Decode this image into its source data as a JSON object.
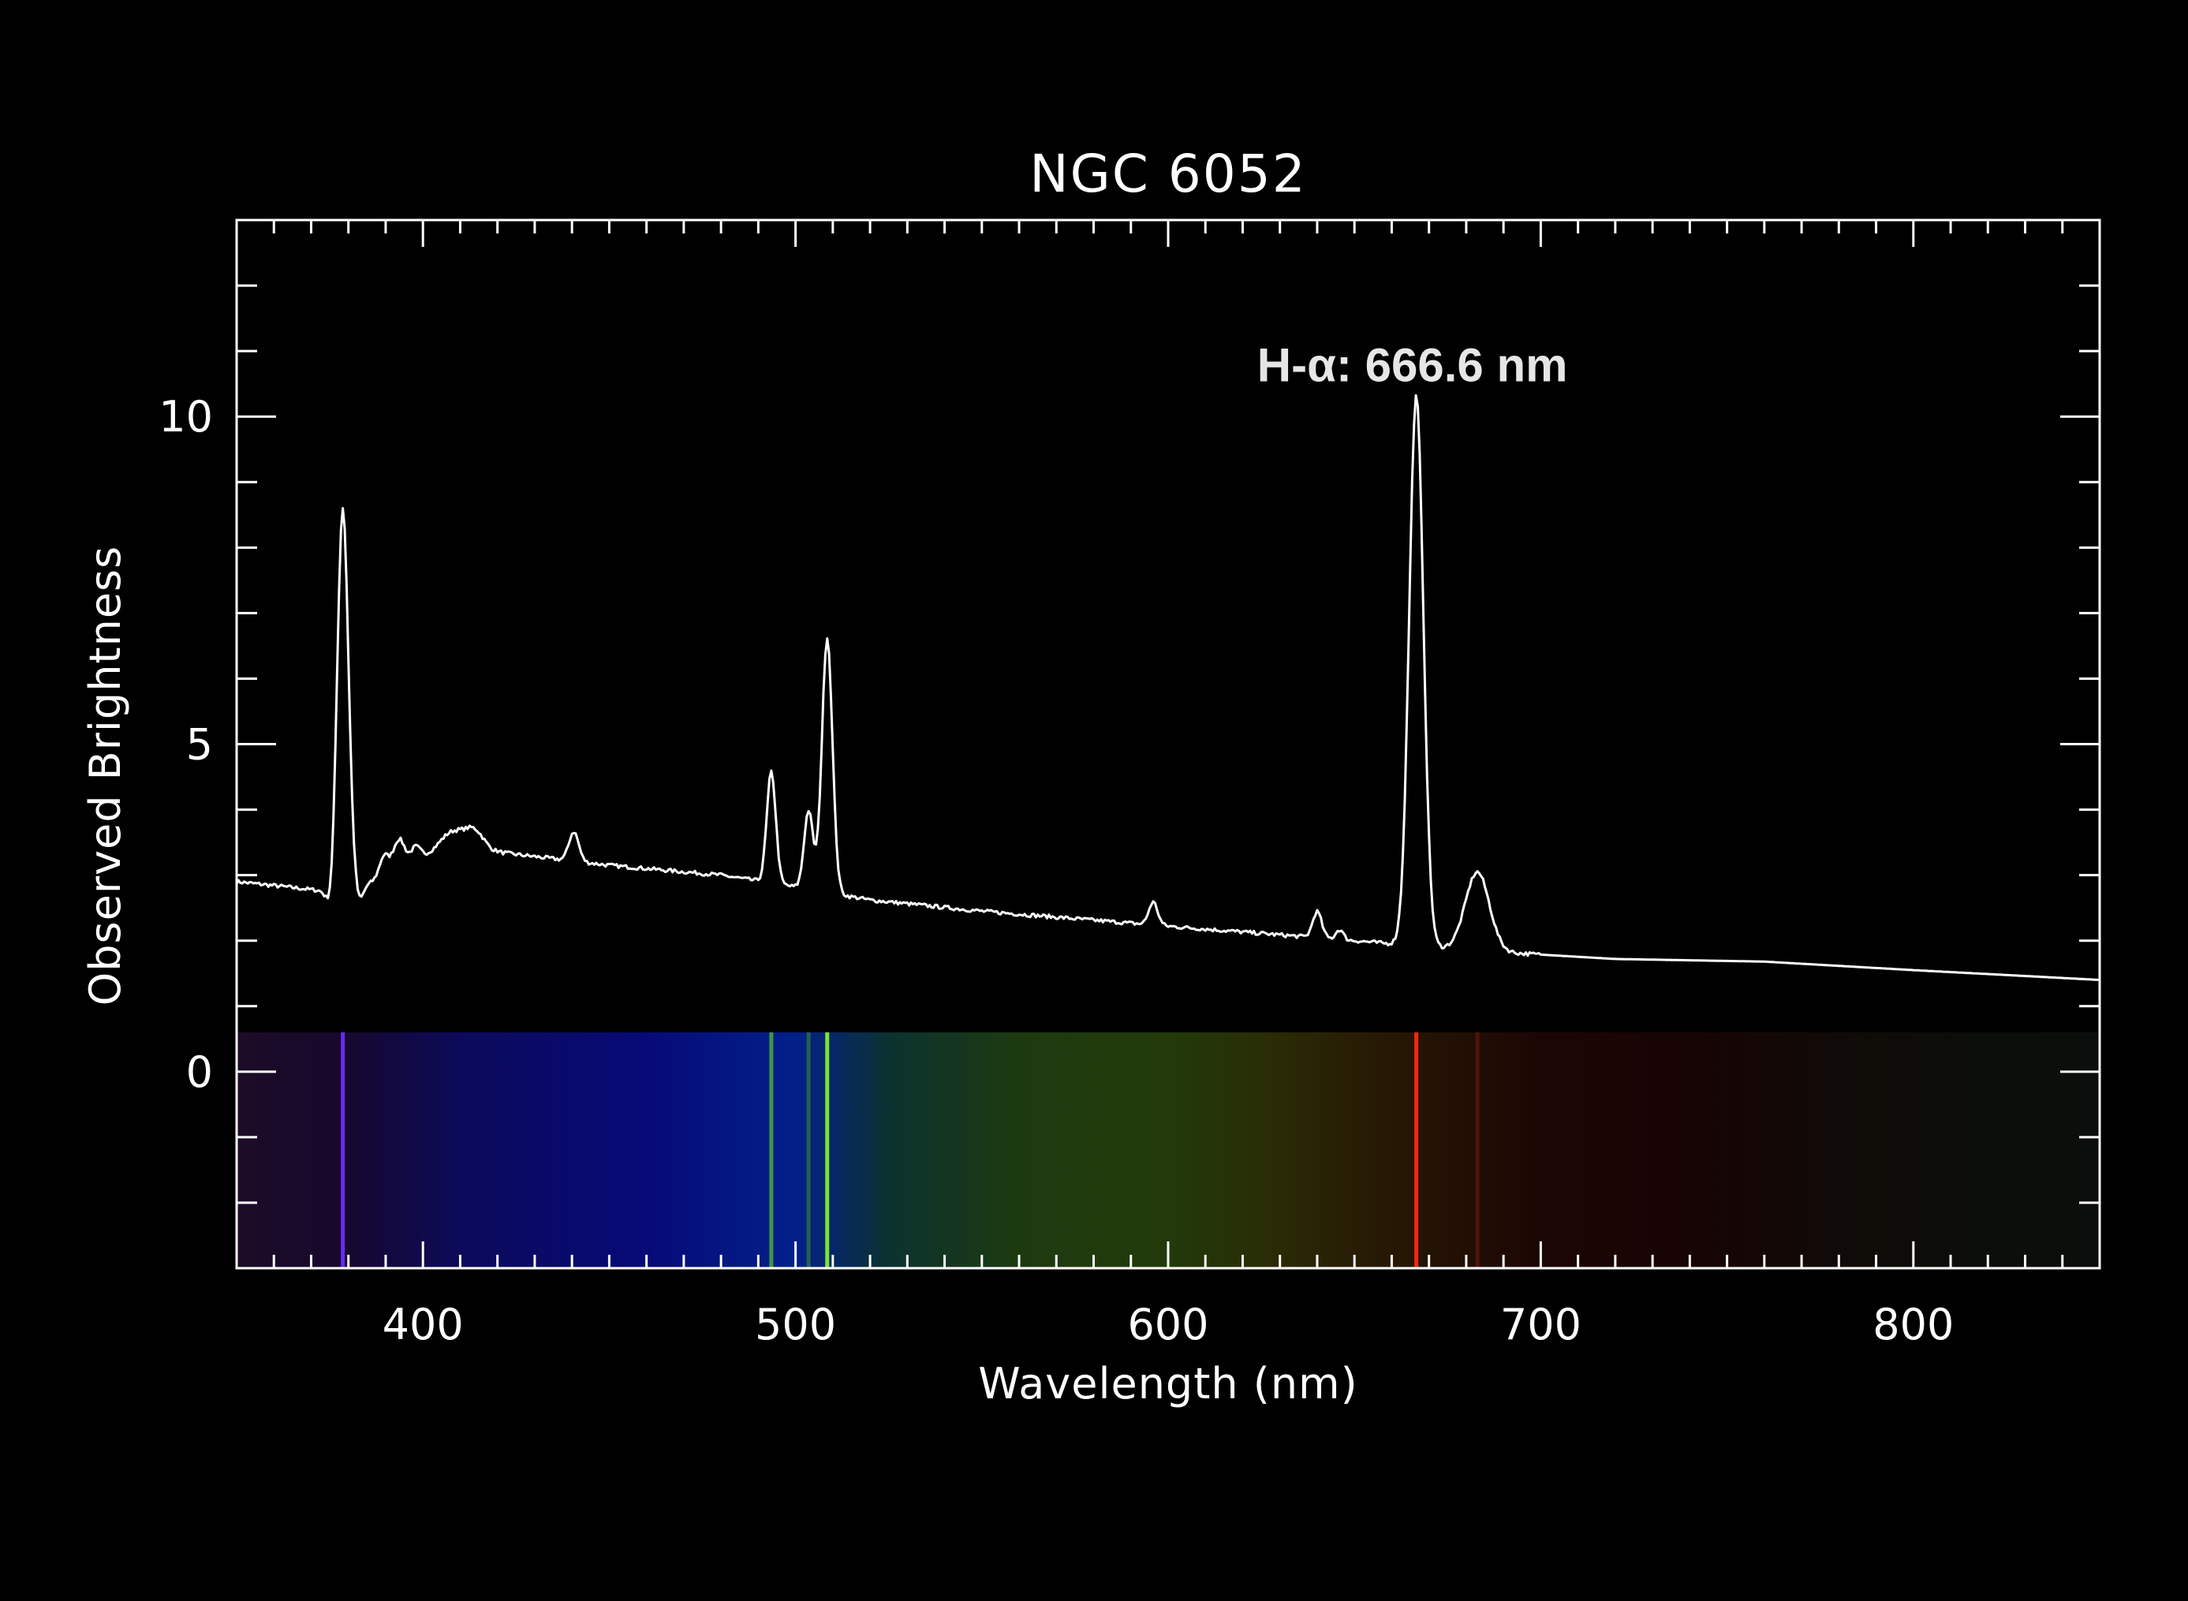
{
  "chart_data": {
    "type": "line",
    "title": "NGC 6052",
    "xlabel": "Wavelength (nm)",
    "ylabel": "Observed Brightness",
    "xlim": [
      350,
      850
    ],
    "ylim": [
      -3,
      13
    ],
    "x_major_ticks": [
      400,
      500,
      600,
      700,
      800
    ],
    "x_minor_step": 10,
    "y_major_ticks": [
      0,
      5,
      10
    ],
    "y_minor_step": 1,
    "grid": false,
    "annotation": {
      "text": "H-α: 666.6 nm",
      "x": 666.6,
      "y": 10.3
    },
    "continuum": [
      [
        350,
        2.9
      ],
      [
        380,
        2.72
      ],
      [
        400,
        3.28
      ],
      [
        420,
        3.35
      ],
      [
        450,
        3.15
      ],
      [
        480,
        3.0
      ],
      [
        500,
        2.82
      ],
      [
        520,
        2.62
      ],
      [
        550,
        2.45
      ],
      [
        600,
        2.22
      ],
      [
        650,
        2.0
      ],
      [
        670,
        1.9
      ],
      [
        690,
        1.82
      ],
      [
        720,
        1.72
      ],
      [
        760,
        1.68
      ],
      [
        800,
        1.55
      ],
      [
        850,
        1.4
      ]
    ],
    "emission_lines": [
      {
        "center": 378.5,
        "height": 5.9,
        "width": 1.5
      },
      {
        "center": 389.5,
        "height": 0.3,
        "width": 1.2
      },
      {
        "center": 393.5,
        "height": 0.45,
        "width": 1.6
      },
      {
        "center": 398,
        "height": 0.2,
        "width": 1.2
      },
      {
        "center": 408,
        "height": 0.35,
        "width": 3.5
      },
      {
        "center": 414,
        "height": 0.3,
        "width": 2.5
      },
      {
        "center": 440.5,
        "height": 0.45,
        "width": 1.3
      },
      {
        "center": 493.5,
        "height": 1.7,
        "width": 1.2
      },
      {
        "center": 503.5,
        "height": 1.2,
        "width": 1.2
      },
      {
        "center": 508.5,
        "height": 3.9,
        "width": 1.4
      },
      {
        "center": 596,
        "height": 0.35,
        "width": 1.2
      },
      {
        "center": 640,
        "height": 0.4,
        "width": 1.2
      },
      {
        "center": 646,
        "height": 0.15,
        "width": 1.0
      },
      {
        "center": 666.6,
        "height": 8.4,
        "width": 1.9
      },
      {
        "center": 683,
        "height": 1.2,
        "width": 3.2
      }
    ],
    "absorption_dips": [
      {
        "center": 375.5,
        "depth": 0.35,
        "width": 1.2
      },
      {
        "center": 383,
        "depth": 0.2,
        "width": 1.0
      }
    ],
    "color_strip": {
      "y_range": [
        -3,
        0.6
      ],
      "bright_lines": [
        {
          "wavelength": 378.5,
          "color": "#6a2cff",
          "opacity": 0.95
        },
        {
          "wavelength": 493.5,
          "color": "#4fc22c",
          "opacity": 0.75
        },
        {
          "wavelength": 503.5,
          "color": "#3fa224",
          "opacity": 0.5
        },
        {
          "wavelength": 508.5,
          "color": "#7ef03a",
          "opacity": 0.95
        },
        {
          "wavelength": 666.6,
          "color": "#ff2a10",
          "opacity": 0.95
        },
        {
          "wavelength": 683,
          "color": "#7a1a12",
          "opacity": 0.55
        }
      ]
    },
    "colors": {
      "background": "#000000",
      "line": "#ffffff",
      "text": "#ffffff"
    }
  }
}
